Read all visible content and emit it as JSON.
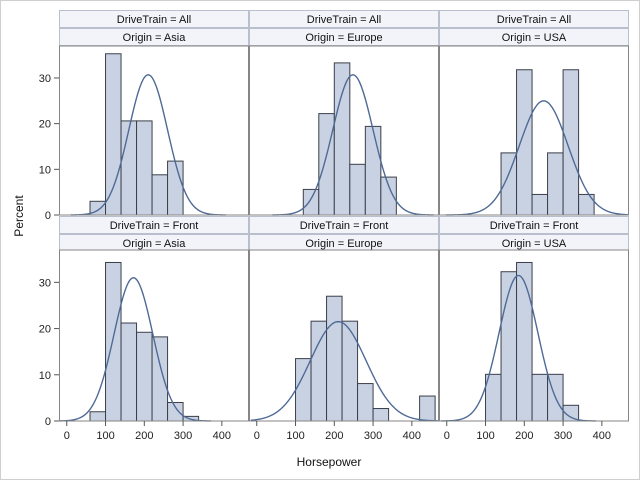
{
  "chart_data": {
    "type": "bar",
    "subtype": "histogram-panel",
    "xlabel": "Horsepower",
    "ylabel": "Percent",
    "x_ticks": [
      0,
      100,
      200,
      300,
      400
    ],
    "y_ticks": [
      0,
      10,
      20,
      30
    ],
    "xlim": [
      -20,
      470
    ],
    "ylim": [
      0,
      37
    ],
    "bin_width": 40,
    "density_overlay": "normal",
    "colors": {
      "bar_fill": "#c8d2e2",
      "bar_stroke": "#3b3f4a",
      "curve": "#4f6a96",
      "header_fill": "#f2f4fa",
      "border": "#868686"
    },
    "grid": false,
    "panels": [
      {
        "header1": "DriveTrain = All",
        "header2": "Origin = Asia",
        "bins": [
          {
            "x": 80,
            "value": 3
          },
          {
            "x": 120,
            "value": 35.3
          },
          {
            "x": 160,
            "value": 20.6
          },
          {
            "x": 200,
            "value": 20.6
          },
          {
            "x": 240,
            "value": 8.8
          },
          {
            "x": 280,
            "value": 11.8
          }
        ],
        "curve": {
          "mean": 210,
          "sd": 50,
          "peak": 30.7
        }
      },
      {
        "header1": "DriveTrain = All",
        "header2": "Origin = Europe",
        "bins": [
          {
            "x": 140,
            "value": 5.6
          },
          {
            "x": 180,
            "value": 22.2
          },
          {
            "x": 220,
            "value": 33.3
          },
          {
            "x": 260,
            "value": 11.1
          },
          {
            "x": 300,
            "value": 19.4
          },
          {
            "x": 340,
            "value": 8.3
          }
        ],
        "curve": {
          "mean": 248,
          "sd": 52,
          "peak": 30.7
        }
      },
      {
        "header1": "DriveTrain = All",
        "header2": "Origin = USA",
        "bins": [
          {
            "x": 160,
            "value": 13.6
          },
          {
            "x": 200,
            "value": 31.8
          },
          {
            "x": 240,
            "value": 4.5
          },
          {
            "x": 280,
            "value": 13.6
          },
          {
            "x": 320,
            "value": 31.8
          },
          {
            "x": 360,
            "value": 4.5
          }
        ],
        "curve": {
          "mean": 250,
          "sd": 63,
          "peak": 25
        }
      },
      {
        "header1": "DriveTrain = Front",
        "header2": "Origin = Asia",
        "bins": [
          {
            "x": 80,
            "value": 2
          },
          {
            "x": 120,
            "value": 34.3
          },
          {
            "x": 160,
            "value": 21.2
          },
          {
            "x": 200,
            "value": 19.2
          },
          {
            "x": 240,
            "value": 18.2
          },
          {
            "x": 280,
            "value": 4
          },
          {
            "x": 320,
            "value": 1
          }
        ],
        "curve": {
          "mean": 172,
          "sd": 50,
          "peak": 31
        }
      },
      {
        "header1": "DriveTrain = Front",
        "header2": "Origin = Europe",
        "bins": [
          {
            "x": 120,
            "value": 13.5
          },
          {
            "x": 160,
            "value": 21.6
          },
          {
            "x": 200,
            "value": 27
          },
          {
            "x": 240,
            "value": 21.6
          },
          {
            "x": 280,
            "value": 8.1
          },
          {
            "x": 320,
            "value": 2.7
          },
          {
            "x": 440,
            "value": 5.4
          }
        ],
        "curve": {
          "mean": 210,
          "sd": 72,
          "peak": 21.5
        }
      },
      {
        "header1": "DriveTrain = Front",
        "header2": "Origin = USA",
        "bins": [
          {
            "x": 120,
            "value": 10.1
          },
          {
            "x": 160,
            "value": 32.3
          },
          {
            "x": 200,
            "value": 34.3
          },
          {
            "x": 240,
            "value": 10.1
          },
          {
            "x": 280,
            "value": 10.1
          },
          {
            "x": 320,
            "value": 3.4
          }
        ],
        "curve": {
          "mean": 185,
          "sd": 50,
          "peak": 31.5
        }
      }
    ]
  }
}
